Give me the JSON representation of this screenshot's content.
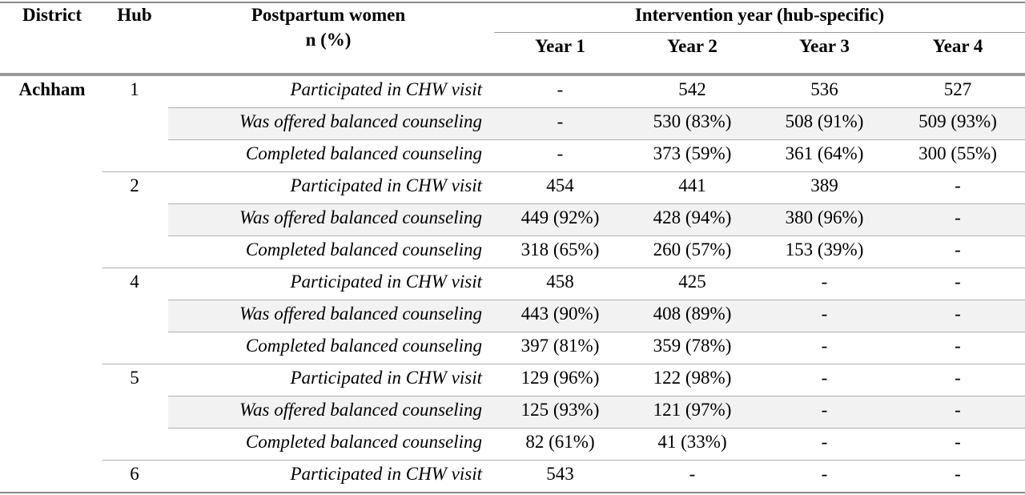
{
  "header": {
    "district": "District",
    "hub": "Hub",
    "postpartum_line1": "Postpartum women",
    "postpartum_line2": "n (%)",
    "intervention": "Intervention year (hub-specific)",
    "years": [
      "Year 1",
      "Year 2",
      "Year 3",
      "Year 4"
    ]
  },
  "rows": [
    {
      "district": "Achham",
      "hub": "1",
      "label": "Participated in CHW visit",
      "values": [
        "-",
        "542",
        "536",
        "527"
      ]
    },
    {
      "district": "",
      "hub": "",
      "label": "Was offered balanced counseling",
      "values": [
        "-",
        "530 (83%)",
        "508 (91%)",
        "509 (93%)"
      ]
    },
    {
      "district": "",
      "hub": "",
      "label": "Completed balanced counseling",
      "values": [
        "-",
        "373 (59%)",
        "361 (64%)",
        "300 (55%)"
      ]
    },
    {
      "district": "",
      "hub": "2",
      "label": "Participated in CHW visit",
      "values": [
        "454",
        "441",
        "389",
        "-"
      ]
    },
    {
      "district": "",
      "hub": "",
      "label": "Was offered balanced counseling",
      "values": [
        "449 (92%)",
        "428 (94%)",
        "380 (96%)",
        "-"
      ]
    },
    {
      "district": "",
      "hub": "",
      "label": "Completed balanced counseling",
      "values": [
        "318 (65%)",
        "260 (57%)",
        "153 (39%)",
        "-"
      ]
    },
    {
      "district": "",
      "hub": "4",
      "label": "Participated in CHW visit",
      "values": [
        "458",
        "425",
        "-",
        "-"
      ]
    },
    {
      "district": "",
      "hub": "",
      "label": "Was offered balanced counseling",
      "values": [
        "443 (90%)",
        "408 (89%)",
        "-",
        "-"
      ]
    },
    {
      "district": "",
      "hub": "",
      "label": "Completed balanced counseling",
      "values": [
        "397 (81%)",
        "359 (78%)",
        "-",
        "-"
      ]
    },
    {
      "district": "",
      "hub": "5",
      "label": "Participated in CHW visit",
      "values": [
        "129 (96%)",
        "122 (98%)",
        "-",
        "-"
      ]
    },
    {
      "district": "",
      "hub": "",
      "label": "Was offered balanced counseling",
      "values": [
        "125 (93%)",
        "121 (97%)",
        "-",
        "-"
      ]
    },
    {
      "district": "",
      "hub": "",
      "label": "Completed balanced counseling",
      "values": [
        "82 (61%)",
        "41 (33%)",
        "-",
        "-"
      ]
    },
    {
      "district": "",
      "hub": "6",
      "label": "Participated in CHW visit",
      "values": [
        "543",
        "-",
        "-",
        "-"
      ]
    }
  ]
}
